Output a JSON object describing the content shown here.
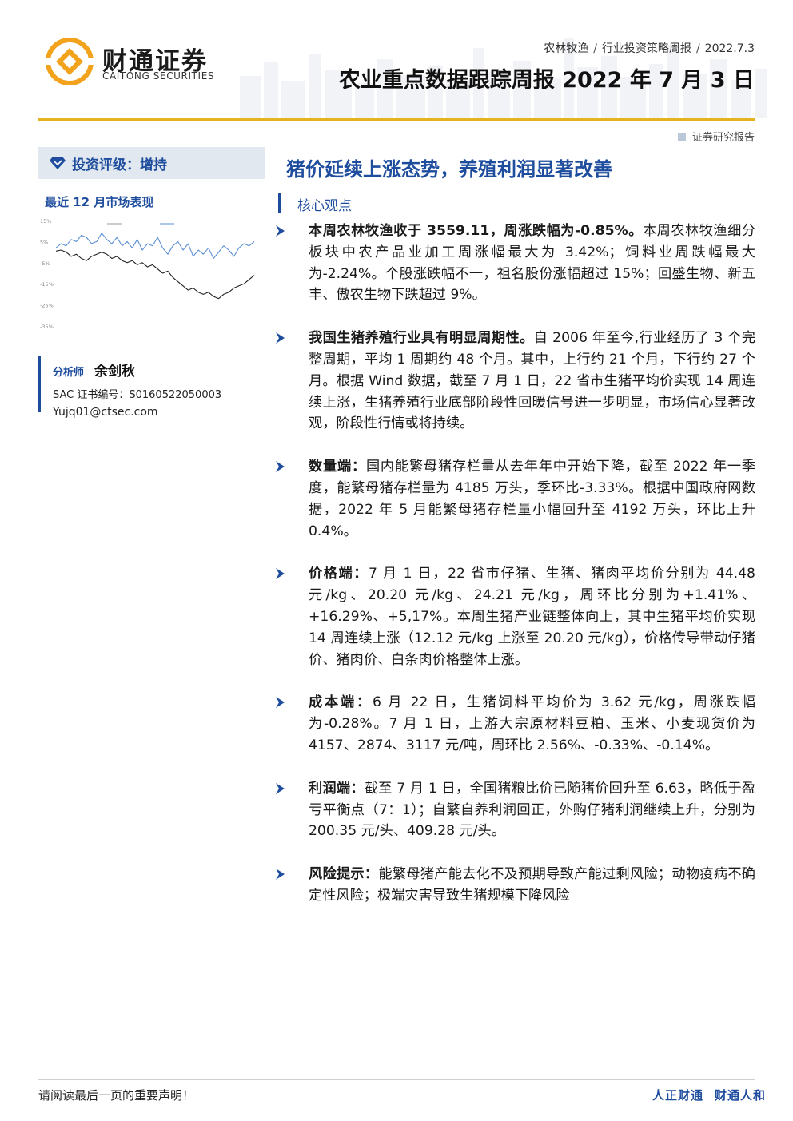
{
  "header": {
    "brand_cn": "财通证券",
    "brand_en": "CAITONG SECURITIES",
    "breadcrumbs": [
      "农林牧渔",
      "行业投资策略周报",
      "2022.7.3"
    ],
    "title": "农业重点数据跟踪周报 2022 年 7 月 3 日",
    "doc_type": "证券研究报告"
  },
  "sidebar": {
    "rating": "投资评级：增持",
    "perf_title": "最近 12 月市场表现",
    "analyst": {
      "role": "分析师",
      "name": "余剑秋",
      "sac": "SAC 证书编号：S0160522050003",
      "email": "Yujq01@ctsec.com"
    }
  },
  "main": {
    "headline": "猪价延续上涨态势，养殖利润显著改善",
    "section": "核心观点",
    "bullets": [
      {
        "bold": "本周农林牧渔收于 3559.11，周涨跌幅为-0.85%。",
        "text": "本周农林牧渔细分板块中农产品业加工周涨幅最大为 3.42%；饲料业周跌幅最大为-2.24%。个股涨跌幅不一，祖名股份涨幅超过 15%；回盛生物、新五丰、傲农生物下跌超过 9%。"
      },
      {
        "bold": "我国生猪养殖行业具有明显周期性。",
        "text": "自 2006 年至今,行业经历了 3 个完整周期，平均 1 周期约 48 个月。其中，上行约 21 个月，下行约 27 个月。根据 Wind 数据，截至 7 月 1 日，22 省市生猪平均价实现 14 周连续上涨，生猪养殖行业底部阶段性回暖信号进一步明显，市场信心显著改观，阶段性行情或将持续。"
      },
      {
        "bold": "数量端：",
        "text": "国内能繁母猪存栏量从去年年中开始下降，截至 2022 年一季度，能繁母猪存栏量为 4185 万头，季环比-3.33%。根据中国政府网数据，2022 年 5 月能繁母猪存栏量小幅回升至 4192 万头，环比上升 0.4%。"
      },
      {
        "bold": "价格端：",
        "text": "7 月 1 日，22 省市仔猪、生猪、猪肉平均价分别为 44.48 元/kg、20.20 元/kg、24.21 元/kg，周环比分别为+1.41%、+16.29%、+5,17%。本周生猪产业链整体向上，其中生猪平均价实现 14 周连续上涨（12.12 元/kg 上涨至 20.20 元/kg），价格传导带动仔猪价、猪肉价、白条肉价格整体上涨。"
      },
      {
        "bold": "成本端：",
        "text": "6 月 22 日，生猪饲料平均价为 3.62 元/kg，周涨跌幅为-0.28%。7 月 1 日，上游大宗原材料豆粕、玉米、小麦现货价为 4157、2874、3117 元/吨，周环比 2.56%、-0.33%、-0.14%。"
      },
      {
        "bold": "利润端：",
        "text": "截至 7 月 1 日，全国猪粮比价已随猪价回升至 6.63，略低于盈亏平衡点（7：1）；自繁自养利润回正，外购仔猪利润继续上升，分别为 200.35 元/头、409.28 元/头。"
      },
      {
        "bold": "风险提示：",
        "text": "能繁母猪产能去化不及预期导致产能过剩风险；动物疫病不确定性风险；极端灾害导致生猪规模下降风险"
      }
    ]
  },
  "footer": {
    "disclaimer": "请阅读最后一页的重要声明！",
    "slogan_1": "人正财通",
    "slogan_2": "财通人和"
  },
  "colors": {
    "accent_blue": "#1f4d9e",
    "gold": "#e4b320",
    "logo_orange": "#f2a31b",
    "series_2": "#5b8fd4"
  },
  "chart_data": {
    "type": "line",
    "legend_placement": "top",
    "ytick_labels": [
      "15%",
      "5%",
      "-5%",
      "-15%",
      "-25%",
      "-35%"
    ],
    "series": [
      {
        "values": [
          0.5,
          1,
          0,
          -2,
          -1,
          -3,
          -4,
          -2,
          -1,
          0,
          -1,
          -3,
          -2,
          -4,
          -5,
          -4,
          -6,
          -5,
          -7,
          -6,
          -8,
          -10,
          -9,
          -12,
          -14,
          -16,
          -18,
          -17,
          -19,
          -20,
          -19,
          -21,
          -22,
          -20,
          -19,
          -17,
          -16,
          -15,
          -13,
          -11
        ]
      },
      {
        "values": [
          2,
          4,
          3,
          6,
          5,
          8,
          7,
          4,
          5,
          9,
          6,
          4,
          7,
          3,
          5,
          2,
          6,
          1,
          4,
          3,
          7,
          2,
          -1,
          3,
          5,
          1,
          4,
          -2,
          1,
          -1,
          2,
          -3,
          0,
          3,
          1,
          -2,
          2,
          4,
          3,
          5
        ]
      }
    ]
  }
}
